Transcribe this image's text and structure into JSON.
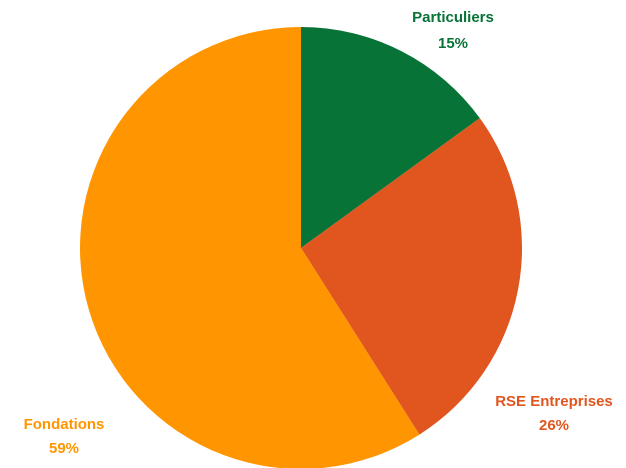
{
  "chart_data": {
    "type": "pie",
    "slices": [
      {
        "label": "Particuliers",
        "value": 15,
        "value_label": "15%",
        "color": "#077336"
      },
      {
        "label": "RSE Entreprises",
        "value": 26,
        "value_label": "26%",
        "color": "#E0561E"
      },
      {
        "label": "Fondations",
        "value": 59,
        "value_label": "59%",
        "color": "#FF9500"
      }
    ],
    "start_angle_deg": 0,
    "direction": "clockwise",
    "legend": "none",
    "data_labels": "outside"
  }
}
